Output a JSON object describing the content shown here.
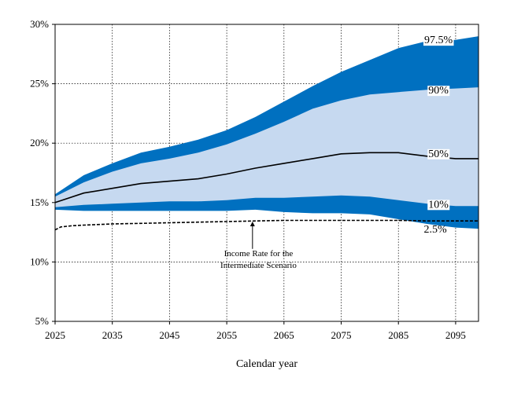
{
  "chart_data": {
    "type": "area",
    "xlabel": "Calendar year",
    "ylabel": "",
    "xlim": [
      2025,
      2099
    ],
    "ylim": [
      5,
      30
    ],
    "x_ticks": [
      2025,
      2035,
      2045,
      2055,
      2065,
      2075,
      2085,
      2095
    ],
    "x_tick_labels": [
      "2025",
      "2035",
      "2045",
      "2055",
      "2065",
      "2075",
      "2085",
      "2095"
    ],
    "y_ticks": [
      5,
      10,
      15,
      20,
      25,
      30
    ],
    "y_tick_labels": [
      "5%",
      "10%",
      "15%",
      "20%",
      "25%",
      "30%"
    ],
    "grid": "dotted",
    "x": [
      2025,
      2030,
      2035,
      2040,
      2045,
      2050,
      2055,
      2060,
      2065,
      2070,
      2075,
      2080,
      2085,
      2090,
      2095,
      2099
    ],
    "percentile_series": [
      {
        "name": "97.5%",
        "values": [
          15.7,
          17.3,
          18.3,
          19.2,
          19.7,
          20.3,
          21.1,
          22.2,
          23.5,
          24.8,
          26.0,
          27.0,
          28.0,
          28.6,
          28.7,
          29.0
        ]
      },
      {
        "name": "90%",
        "values": [
          15.5,
          16.7,
          17.6,
          18.3,
          18.7,
          19.2,
          19.9,
          20.8,
          21.8,
          22.9,
          23.6,
          24.1,
          24.3,
          24.5,
          24.6,
          24.7
        ]
      },
      {
        "name": "50%",
        "values": [
          15.0,
          15.8,
          16.2,
          16.6,
          16.8,
          17.0,
          17.4,
          17.9,
          18.3,
          18.7,
          19.1,
          19.2,
          19.2,
          18.9,
          18.7,
          18.7
        ]
      },
      {
        "name": "10%",
        "values": [
          14.6,
          14.8,
          14.9,
          15.0,
          15.1,
          15.1,
          15.2,
          15.4,
          15.4,
          15.5,
          15.6,
          15.5,
          15.2,
          14.9,
          14.7,
          14.7
        ]
      },
      {
        "name": "2.5%",
        "values": [
          14.4,
          14.3,
          14.3,
          14.3,
          14.3,
          14.3,
          14.3,
          14.4,
          14.2,
          14.1,
          14.1,
          14.0,
          13.6,
          13.2,
          12.9,
          12.8
        ]
      }
    ],
    "intermediate_scenario": {
      "x": [
        2025,
        2026,
        2028,
        2030,
        2035,
        2040,
        2045,
        2050,
        2055,
        2060,
        2065,
        2070,
        2075,
        2080,
        2085,
        2090,
        2095,
        2099
      ],
      "values": [
        12.7,
        12.95,
        13.05,
        13.1,
        13.2,
        13.25,
        13.3,
        13.35,
        13.4,
        13.45,
        13.5,
        13.5,
        13.5,
        13.5,
        13.5,
        13.45,
        13.45,
        13.45
      ]
    },
    "annotation": {
      "line1": "Income Rate for the",
      "line2": "Intermediate Scenario"
    },
    "colors": {
      "outer_band": "#0070c0",
      "inner_band": "#c6d9f0",
      "median_line": "#000000",
      "scenario_line": "#000000"
    }
  }
}
